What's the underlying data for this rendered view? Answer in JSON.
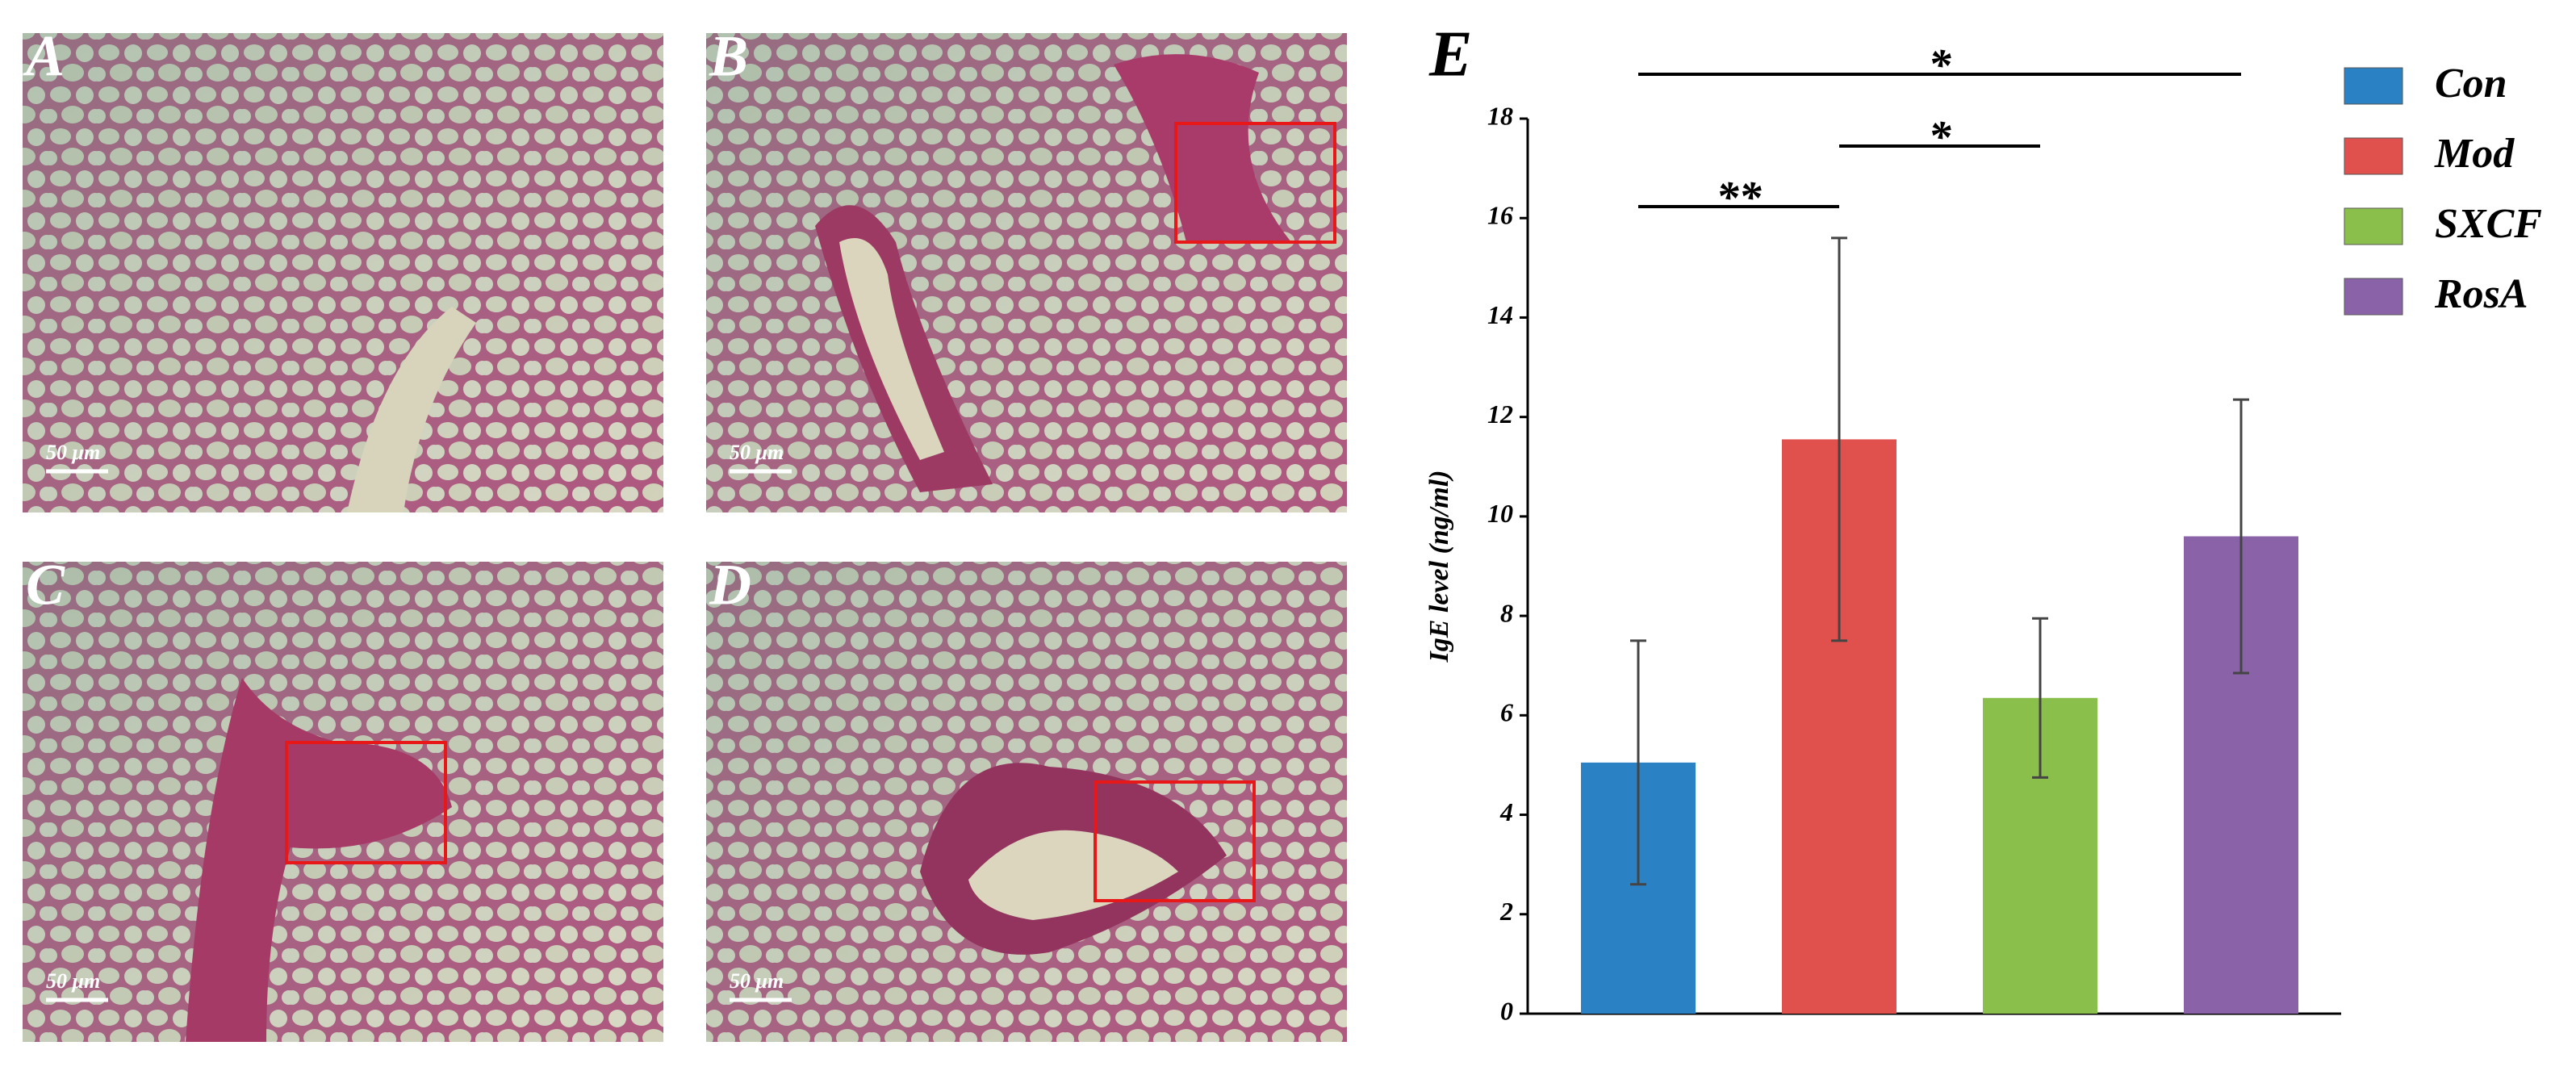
{
  "panels": [
    {
      "label": "A",
      "scale_bar": "50 μm"
    },
    {
      "label": "B",
      "scale_bar": "50 μm"
    },
    {
      "label": "C",
      "scale_bar": "50 μm"
    },
    {
      "label": "D",
      "scale_bar": "50 μm"
    }
  ],
  "chart_data": {
    "type": "bar",
    "panel_label": "E",
    "y_label": "IgE level (ng/ml)",
    "categories": [
      "Con",
      "Mod",
      "SXCF",
      "RosA"
    ],
    "values": [
      5.05,
      11.55,
      6.35,
      9.6
    ],
    "errors": [
      2.45,
      4.05,
      1.6,
      2.75
    ],
    "colors": [
      "#2a82c4",
      "#e0504d",
      "#8bbf4c",
      "#8a62a8"
    ],
    "ylim": [
      0,
      18
    ],
    "yticks": [
      0,
      2,
      4,
      6,
      8,
      10,
      12,
      14,
      16,
      18
    ],
    "legend": "right",
    "annotations": [
      {
        "text": "**",
        "from": 0,
        "to": 1
      },
      {
        "text": "*",
        "from": 1,
        "to": 2
      },
      {
        "text": "*",
        "from": 0,
        "to": 3
      }
    ]
  }
}
